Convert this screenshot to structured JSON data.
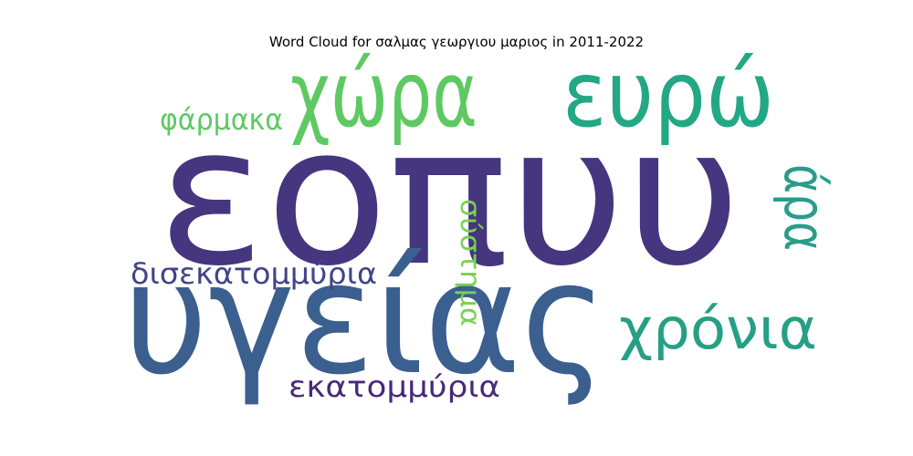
{
  "chart_data": {
    "type": "word_cloud",
    "title": "Word Cloud for σαλμας γεωργιου μαριος in 2011-2022",
    "words": [
      {
        "text": "εοπυυ",
        "weight": 1.0,
        "color": "#46357f"
      },
      {
        "text": "υγείας",
        "weight": 0.85,
        "color": "#3b5f8f"
      },
      {
        "text": "χώρα",
        "weight": 0.42,
        "color": "#5ec962"
      },
      {
        "text": "ευρώ",
        "weight": 0.42,
        "color": "#22a884"
      },
      {
        "text": "άρα",
        "weight": 0.28,
        "color": "#2a9d8a"
      },
      {
        "text": "χρόνια",
        "weight": 0.3,
        "color": "#26a085"
      },
      {
        "text": "φάρμακα",
        "weight": 0.18,
        "color": "#5ec962"
      },
      {
        "text": "δισεκατομμύρια",
        "weight": 0.17,
        "color": "#414487"
      },
      {
        "text": "σύστημα",
        "weight": 0.17,
        "color": "#7ad151"
      },
      {
        "text": "εκατομμύρια",
        "weight": 0.17,
        "color": "#482878"
      }
    ]
  }
}
